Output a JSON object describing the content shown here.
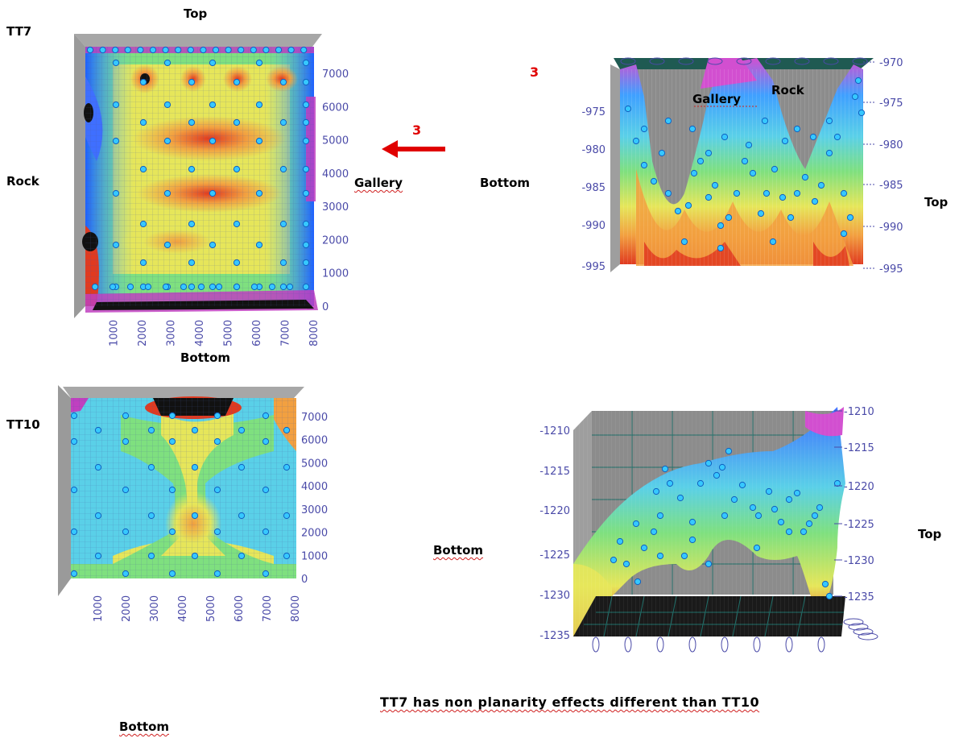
{
  "labels": {
    "tt7": "TT7",
    "top_tt7": "Top",
    "rock_left": "Rock",
    "gallery_left": "Gallery",
    "bottom_tt7": "Bottom",
    "arrow_num": "3",
    "view3_num": "3",
    "bottom_right1": "Bottom",
    "top_right1": "Top",
    "gallery_r1": "Gallery",
    "rock_r1": "Rock",
    "tt10": "TT10",
    "bottom_tt10": "Bottom",
    "bottom_right2": "Bottom",
    "top_right2": "Top",
    "caption": "TT7 has non planarity effects different than TT10"
  },
  "chart_data": [
    {
      "type": "heatmap",
      "name": "TT7 top view",
      "x_ticks": [
        "1000",
        "2000",
        "3000",
        "4000",
        "5000",
        "6000",
        "7000",
        "8000"
      ],
      "y_ticks": [
        "0",
        "1000",
        "2000",
        "3000",
        "4000",
        "5000",
        "6000",
        "7000"
      ],
      "xlim": [
        0,
        8000
      ],
      "ylim": [
        0,
        7800
      ],
      "colors": [
        "#1e90ff",
        "#5ad0e8",
        "#7fe07f",
        "#e6e65a",
        "#f2a040",
        "#e03a20",
        "#c040c0"
      ]
    },
    {
      "type": "area",
      "name": "TT7 side view (3)",
      "y_ticks_left": [
        "-975",
        "-980",
        "-985",
        "-990",
        "-995"
      ],
      "y_ticks_right": [
        "-970",
        "-975",
        "-980",
        "-985",
        "-990",
        "-995"
      ],
      "ylim": [
        -995,
        -970
      ]
    },
    {
      "type": "heatmap",
      "name": "TT10 top view",
      "x_ticks": [
        "1000",
        "2000",
        "3000",
        "4000",
        "5000",
        "6000",
        "7000",
        "8000"
      ],
      "y_ticks": [
        "0",
        "1000",
        "2000",
        "3000",
        "4000",
        "5000",
        "6000",
        "7000"
      ],
      "xlim": [
        0,
        8000
      ],
      "ylim": [
        0,
        7800
      ]
    },
    {
      "type": "area",
      "name": "TT10 side view",
      "y_ticks_left": [
        "-1210",
        "-1215",
        "-1220",
        "-1225",
        "-1230",
        "-1235"
      ],
      "y_ticks_right": [
        "-1210",
        "-1215",
        "-1220",
        "-1225",
        "-1230",
        "-1235"
      ],
      "ylim": [
        -1235,
        -1210
      ]
    }
  ]
}
